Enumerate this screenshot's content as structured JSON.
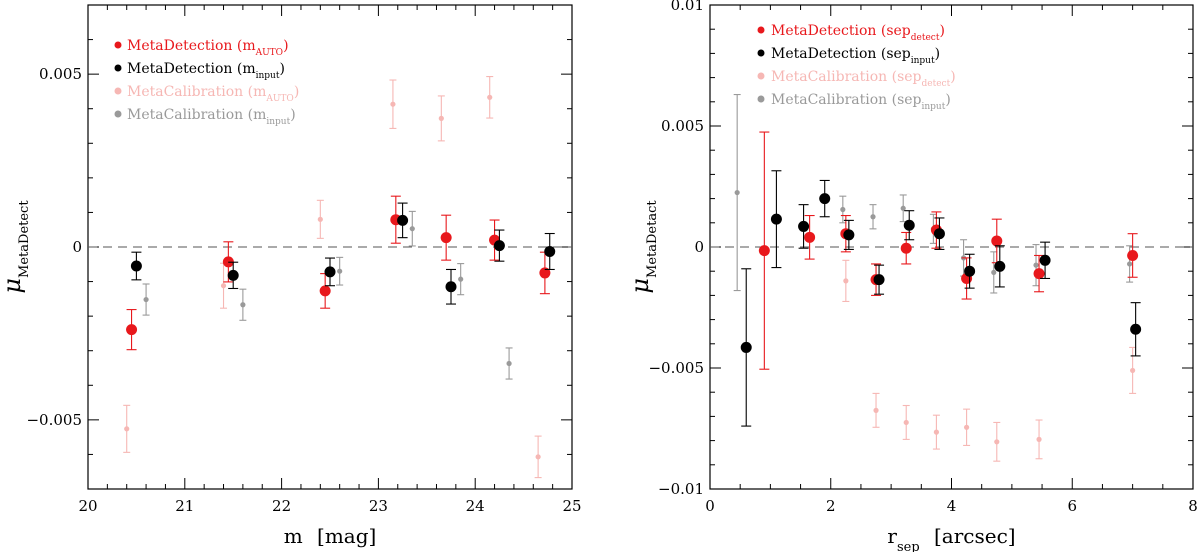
{
  "chart_data": [
    {
      "type": "scatter",
      "error_bars": true,
      "xlabel_main": "m",
      "xlabel_unit": "[mag]",
      "ylabel_main": "μ",
      "ylabel_sub": "MetaDetect",
      "xlim": [
        20,
        25
      ],
      "ylim": [
        -0.007,
        0.007
      ],
      "xticks": [
        20,
        21,
        22,
        23,
        24,
        25
      ],
      "xtick_labels": [
        "20",
        "21",
        "22",
        "23",
        "24",
        "25"
      ],
      "yticks": [
        -0.005,
        0,
        0.005
      ],
      "ytick_labels": [
        "−0.005",
        "0",
        "0.005"
      ],
      "reference_line": 0,
      "legend_position": "top-left",
      "series": [
        {
          "name": "MetaDetection",
          "sub": "AUTO",
          "color": "#e8181c",
          "marker": "large",
          "subset": "red",
          "points": [
            {
              "x": 20.45,
              "y": -0.00239,
              "err": 0.00058
            },
            {
              "x": 21.45,
              "y": -0.00043,
              "err": 0.00058
            },
            {
              "x": 22.45,
              "y": -0.00127,
              "err": 0.0005
            },
            {
              "x": 23.18,
              "y": 0.00079,
              "err": 0.00068
            },
            {
              "x": 23.7,
              "y": 0.00027,
              "err": 0.00065
            },
            {
              "x": 24.2,
              "y": 0.0002,
              "err": 0.00058
            },
            {
              "x": 24.72,
              "y": -0.00075,
              "err": 0.0006
            }
          ]
        },
        {
          "name": "MetaDetection",
          "sub": "input",
          "color": "#000000",
          "marker": "large",
          "subset": "black",
          "points": [
            {
              "x": 20.5,
              "y": -0.00055,
              "err": 0.0004
            },
            {
              "x": 21.5,
              "y": -0.00082,
              "err": 0.00038
            },
            {
              "x": 22.5,
              "y": -0.00072,
              "err": 0.0004
            },
            {
              "x": 23.25,
              "y": 0.00077,
              "err": 0.0005
            },
            {
              "x": 23.75,
              "y": -0.00115,
              "err": 0.0005
            },
            {
              "x": 24.25,
              "y": 4e-05,
              "err": 0.00045
            },
            {
              "x": 24.77,
              "y": -0.00013,
              "err": 0.00052
            }
          ]
        },
        {
          "name": "MetaCalibration",
          "sub": "AUTO",
          "color": "#f6b7b4",
          "marker": "small",
          "subset": "red",
          "points": [
            {
              "x": 20.4,
              "y": -0.00526,
              "err": 0.00068
            },
            {
              "x": 21.4,
              "y": -0.00112,
              "err": 0.00065
            },
            {
              "x": 22.4,
              "y": 0.0008,
              "err": 0.00055
            },
            {
              "x": 23.15,
              "y": 0.00413,
              "err": 0.0007
            },
            {
              "x": 23.65,
              "y": 0.00372,
              "err": 0.00065
            },
            {
              "x": 24.15,
              "y": 0.00433,
              "err": 0.0006
            },
            {
              "x": 24.65,
              "y": -0.00607,
              "err": 0.0006
            }
          ]
        },
        {
          "name": "MetaCalibration",
          "sub": "input",
          "color": "#9a9a9a",
          "marker": "small",
          "subset": "black",
          "points": [
            {
              "x": 20.6,
              "y": -0.00152,
              "err": 0.00045
            },
            {
              "x": 21.6,
              "y": -0.00167,
              "err": 0.00045
            },
            {
              "x": 22.6,
              "y": -0.0007,
              "err": 0.0004
            },
            {
              "x": 23.35,
              "y": 0.00053,
              "err": 0.0005
            },
            {
              "x": 23.85,
              "y": -0.00093,
              "err": 0.00045
            },
            {
              "x": 24.35,
              "y": -0.00337,
              "err": 0.00045
            }
          ]
        }
      ]
    },
    {
      "type": "scatter",
      "error_bars": true,
      "xlabel_main": "r",
      "xlabel_sub": "sep",
      "xlabel_unit": "[arcsec]",
      "ylabel_main": "μ",
      "ylabel_sub": "MetaDetact",
      "xlim": [
        0,
        8
      ],
      "ylim": [
        -0.01,
        0.01
      ],
      "xticks": [
        0,
        2,
        4,
        6,
        8
      ],
      "xtick_labels": [
        "0",
        "2",
        "4",
        "6",
        "8"
      ],
      "yticks": [
        -0.01,
        -0.005,
        0,
        0.005,
        0.01
      ],
      "ytick_labels": [
        "−0.01",
        "−0.005",
        "0",
        "0.005",
        "0.01"
      ],
      "reference_line": 0,
      "legend_position": "top-right",
      "series": [
        {
          "name": "MetaDetection",
          "sub": "detect",
          "color": "#e8181c",
          "marker": "large",
          "subset": "red",
          "points": [
            {
              "x": 0.9,
              "y": -0.00015,
              "err": 0.0049
            },
            {
              "x": 1.65,
              "y": 0.0004,
              "err": 0.0009
            },
            {
              "x": 2.25,
              "y": 0.00055,
              "err": 0.00075
            },
            {
              "x": 2.75,
              "y": -0.00135,
              "err": 0.00065
            },
            {
              "x": 3.25,
              "y": -5e-05,
              "err": 0.00065
            },
            {
              "x": 3.75,
              "y": 0.0007,
              "err": 0.00075
            },
            {
              "x": 4.25,
              "y": -0.0013,
              "err": 0.00085
            },
            {
              "x": 4.75,
              "y": 0.00025,
              "err": 0.0009
            },
            {
              "x": 5.45,
              "y": -0.0011,
              "err": 0.00075
            },
            {
              "x": 7.0,
              "y": -0.00035,
              "err": 0.0009
            }
          ]
        },
        {
          "name": "MetaDetection",
          "sub": "input",
          "color": "#000000",
          "marker": "large",
          "subset": "black",
          "points": [
            {
              "x": 0.6,
              "y": -0.00415,
              "err": 0.00325
            },
            {
              "x": 1.1,
              "y": 0.00115,
              "err": 0.002
            },
            {
              "x": 1.55,
              "y": 0.00085,
              "err": 0.0009
            },
            {
              "x": 1.9,
              "y": 0.002,
              "err": 0.00075
            },
            {
              "x": 2.3,
              "y": 0.0005,
              "err": 0.0006
            },
            {
              "x": 2.8,
              "y": -0.00135,
              "err": 0.0006
            },
            {
              "x": 3.3,
              "y": 0.0009,
              "err": 0.0006
            },
            {
              "x": 3.8,
              "y": 0.00055,
              "err": 0.00065
            },
            {
              "x": 4.3,
              "y": -0.001,
              "err": 0.0007
            },
            {
              "x": 4.8,
              "y": -0.0008,
              "err": 0.00085
            },
            {
              "x": 5.55,
              "y": -0.00055,
              "err": 0.00075
            },
            {
              "x": 7.05,
              "y": -0.0034,
              "err": 0.0011
            }
          ]
        },
        {
          "name": "MetaCalibration",
          "sub": "detect",
          "color": "#f6b7b4",
          "marker": "small",
          "subset": "red",
          "points": [
            {
              "x": 2.25,
              "y": -0.0014,
              "err": 0.00085
            },
            {
              "x": 2.75,
              "y": -0.00675,
              "err": 0.0007
            },
            {
              "x": 3.25,
              "y": -0.00725,
              "err": 0.0007
            },
            {
              "x": 3.75,
              "y": -0.00765,
              "err": 0.0007
            },
            {
              "x": 4.25,
              "y": -0.00745,
              "err": 0.00075
            },
            {
              "x": 4.75,
              "y": -0.00805,
              "err": 0.0008
            },
            {
              "x": 5.45,
              "y": -0.00795,
              "err": 0.0008
            },
            {
              "x": 7.0,
              "y": -0.0051,
              "err": 0.00095
            }
          ]
        },
        {
          "name": "MetaCalibration",
          "sub": "input",
          "color": "#9a9a9a",
          "marker": "small",
          "subset": "black",
          "points": [
            {
              "x": 0.45,
              "y": 0.00225,
              "err": 0.00405
            },
            {
              "x": 2.2,
              "y": 0.00155,
              "err": 0.00055
            },
            {
              "x": 2.7,
              "y": 0.00125,
              "err": 0.0005
            },
            {
              "x": 3.2,
              "y": 0.0016,
              "err": 0.00055
            },
            {
              "x": 3.7,
              "y": 0.00075,
              "err": 0.0006
            },
            {
              "x": 4.2,
              "y": -0.00045,
              "err": 0.00075
            },
            {
              "x": 4.7,
              "y": -0.00105,
              "err": 0.00085
            },
            {
              "x": 5.4,
              "y": -0.00075,
              "err": 0.00085
            },
            {
              "x": 6.95,
              "y": -0.0007,
              "err": 0.00075
            }
          ]
        }
      ]
    }
  ]
}
